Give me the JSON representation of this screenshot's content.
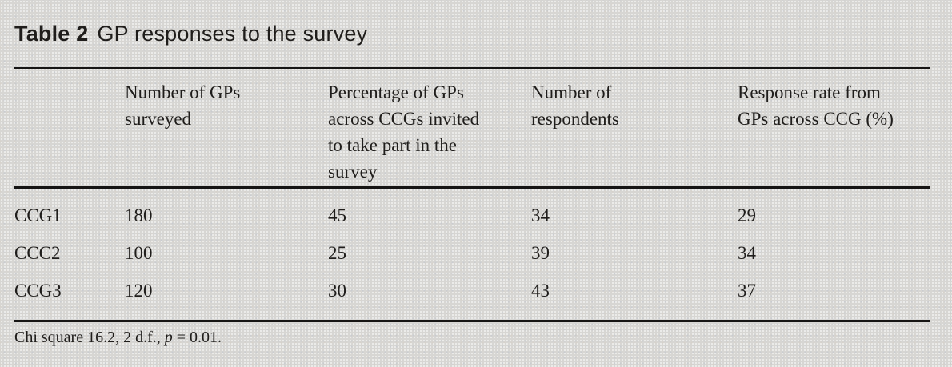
{
  "page": {
    "background_color": "#d7d6d3",
    "ink_color": "#1f1d1b"
  },
  "caption": {
    "label": "Table 2",
    "title": "GP responses to the survey"
  },
  "table": {
    "columns": [
      "",
      "Number of GPs surveyed",
      "Percentage of GPs across CCGs invited to take part in the survey",
      "Number of respondents",
      "Response rate from GPs across CCG (%)"
    ],
    "rows": [
      {
        "label": "CCG1",
        "values": [
          "180",
          "45",
          "34",
          "29"
        ]
      },
      {
        "label": "CCC2",
        "values": [
          "100",
          "25",
          "39",
          "34"
        ]
      },
      {
        "label": "CCG3",
        "values": [
          "120",
          "30",
          "43",
          "37"
        ]
      }
    ]
  },
  "footnote": {
    "prefix": "Chi square 16.2, 2 d.f., ",
    "symbol": "p",
    "rest": " = 0.01."
  }
}
